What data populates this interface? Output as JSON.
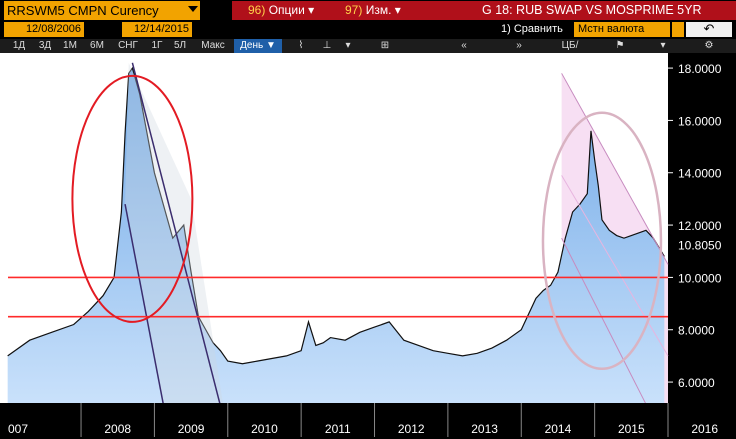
{
  "ticker": {
    "label": "RRSWM5 CMPN Curency"
  },
  "menu": {
    "options_num": "96)",
    "options_label": "Опции",
    "edit_num": "97)",
    "edit_label": "Изм.",
    "chart_title": "G 18: RUB SWAP VS MOSPRIME 5YR"
  },
  "range": {
    "start_date": "12/08/2006",
    "end_date": "12/14/2015",
    "compare_label": "1) Сравнить",
    "currency_label": "Мстн валюта",
    "back_icon": "undo-arrow-icon"
  },
  "toolbar": {
    "periods": [
      "1Д",
      "3Д",
      "1М",
      "6М",
      "СНГ",
      "1Г",
      "5Л",
      "Макс"
    ],
    "frequency": "День",
    "table_label": "Таблица",
    "analysis_label": "ЦБ/Анализ"
  },
  "colors": {
    "accent_orange": "#f2a300",
    "menu_red": "#b0101a",
    "area_fill": "#9ec8f0",
    "hline": "#ff2a2a"
  },
  "chart_data": {
    "type": "area",
    "series": [
      {
        "x": [
          2007.0,
          2007.3,
          2007.6,
          2007.9,
          2008.1,
          2008.3,
          2008.45,
          2008.55,
          2008.6,
          2008.65,
          2008.7,
          2008.8,
          2008.9,
          2009.0,
          2009.1,
          2009.25,
          2009.4,
          2009.5,
          2009.6,
          2009.7,
          2009.8,
          2009.9,
          2010.0,
          2010.2,
          2010.4,
          2010.6,
          2010.8,
          2011.0,
          2011.1,
          2011.2,
          2011.3,
          2011.4,
          2011.6,
          2011.8,
          2012.0,
          2012.2,
          2012.4,
          2012.6,
          2012.8,
          2013.0,
          2013.2,
          2013.4,
          2013.6,
          2013.8,
          2014.0,
          2014.2,
          2014.3,
          2014.4,
          2014.5,
          2014.6,
          2014.7,
          2014.8,
          2014.9,
          2014.95,
          2015.0,
          2015.05,
          2015.1,
          2015.2,
          2015.3,
          2015.4,
          2015.5,
          2015.6,
          2015.7,
          2015.8,
          2015.95
        ],
        "values": [
          7.0,
          7.6,
          7.9,
          8.2,
          8.7,
          9.3,
          10.0,
          12.5,
          15.5,
          17.8,
          18.0,
          17.0,
          15.5,
          14.0,
          13.0,
          11.5,
          12.0,
          10.2,
          8.5,
          8.0,
          7.5,
          7.2,
          6.8,
          6.7,
          6.8,
          6.9,
          7.0,
          7.2,
          8.3,
          7.4,
          7.5,
          7.7,
          7.6,
          7.9,
          8.1,
          8.3,
          7.6,
          7.4,
          7.2,
          7.1,
          7.0,
          7.1,
          7.3,
          7.6,
          8.0,
          9.2,
          9.5,
          9.7,
          10.2,
          11.5,
          12.5,
          12.8,
          13.2,
          15.6,
          14.5,
          13.5,
          12.2,
          11.8,
          11.6,
          11.5,
          11.6,
          11.7,
          11.8,
          11.5,
          10.8
        ],
        "last_value": "10.8050"
      }
    ],
    "x_tick_labels": [
      "007",
      "2008",
      "2009",
      "2010",
      "2011",
      "2012",
      "2013",
      "2014",
      "2015",
      "2016"
    ],
    "y_tick_labels": [
      "6.0000",
      "8.0000",
      "10.0000",
      "12.0000",
      "14.0000",
      "16.0000",
      "18.0000"
    ],
    "last_label": "10.8050",
    "ylim": [
      5.2,
      18.5
    ],
    "xlim": [
      2006.95,
      2016.0
    ],
    "annotations": {
      "horizontal_lines": [
        10.0,
        8.5
      ],
      "ellipses": [
        "red",
        "pink"
      ]
    }
  }
}
